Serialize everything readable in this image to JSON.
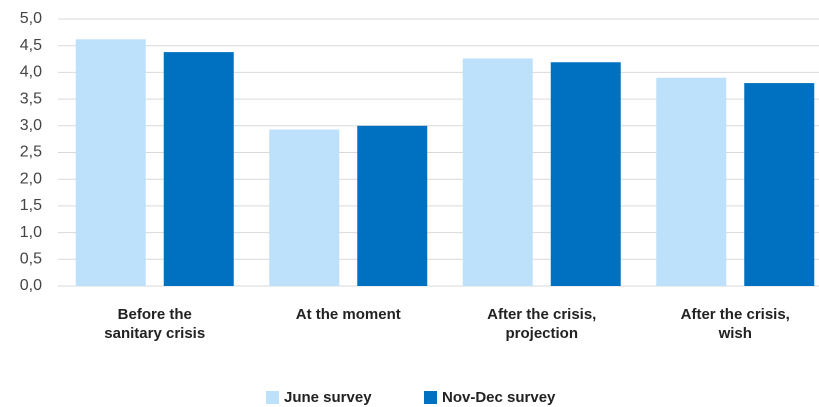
{
  "chart_data": {
    "type": "bar",
    "categories": [
      "Before the\nsanitary crisis",
      "At the moment",
      "After the crisis,\nprojection",
      "After the crisis,\nwish"
    ],
    "series": [
      {
        "name": "June survey",
        "color": "#bde0fb",
        "values": [
          4.62,
          2.93,
          4.26,
          3.9
        ]
      },
      {
        "name": "Nov-Dec survey",
        "color": "#0070c0",
        "values": [
          4.38,
          3.0,
          4.19,
          3.8
        ]
      }
    ],
    "ylim": [
      0,
      5
    ],
    "yticks": [
      {
        "value": 0,
        "label": "0,0"
      },
      {
        "value": 0.5,
        "label": "0,5"
      },
      {
        "value": 1,
        "label": "1,0"
      },
      {
        "value": 1.5,
        "label": "1,5"
      },
      {
        "value": 2,
        "label": "2,0"
      },
      {
        "value": 2.5,
        "label": "2,5"
      },
      {
        "value": 3,
        "label": "3,0"
      },
      {
        "value": 3.5,
        "label": "3,5"
      },
      {
        "value": 4,
        "label": "4,0"
      },
      {
        "value": 4.5,
        "label": "4,5"
      },
      {
        "value": 5,
        "label": "5,0"
      }
    ],
    "grid": true,
    "legend": "bottom"
  }
}
